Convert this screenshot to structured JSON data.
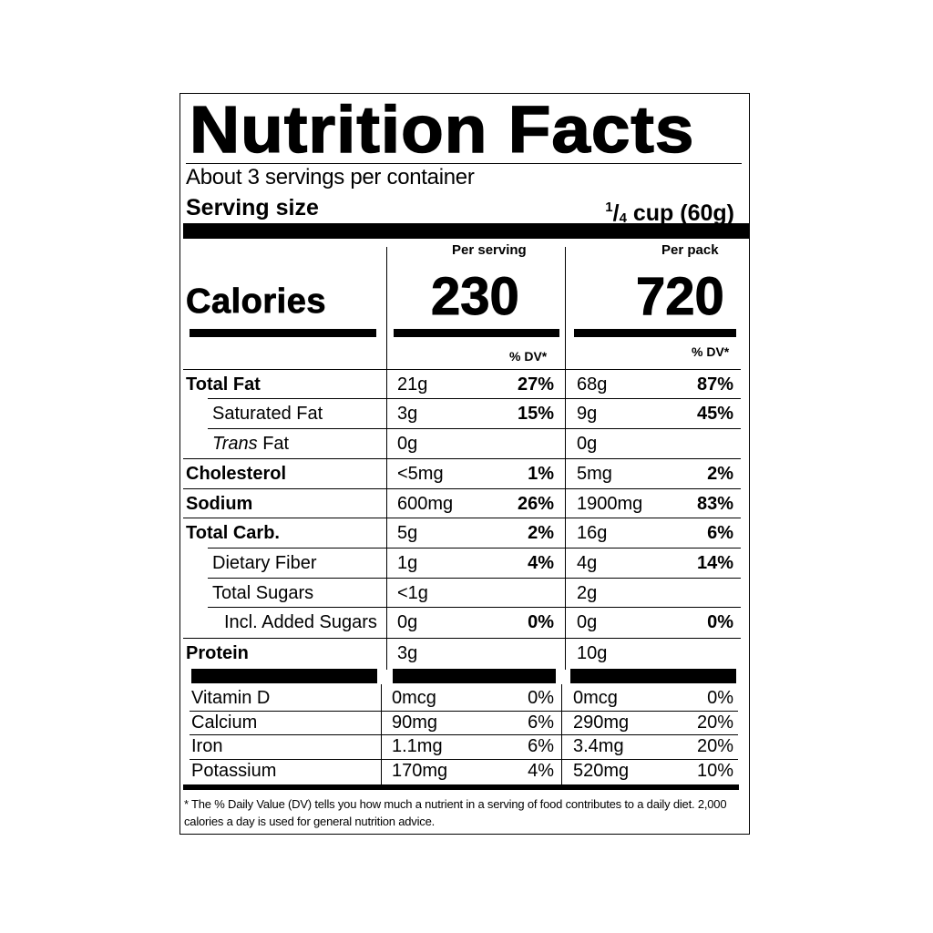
{
  "title": "Nutrition Facts",
  "servings_per_container": "About 3 servings per container",
  "serving_size": {
    "label": "Serving size",
    "numerator": "1",
    "slash": "/",
    "denominator": "4",
    "rest": " cup (60g)"
  },
  "columns": {
    "per_serving": "Per serving",
    "per_pack": "Per pack",
    "dv": "% DV*"
  },
  "calories": {
    "label": "Calories",
    "per_serving": "230",
    "per_pack": "720"
  },
  "nutrients": [
    {
      "name": "Total Fat",
      "bold": true,
      "indent": 0,
      "serving_amount": "21g",
      "serving_dv": "27%",
      "pack_amount": "68g",
      "pack_dv": "87%"
    },
    {
      "name": "Saturated Fat",
      "bold": false,
      "indent": 1,
      "serving_amount": "3g",
      "serving_dv": "15%",
      "pack_amount": "9g",
      "pack_dv": "45%"
    },
    {
      "name_italic": "Trans",
      "name": " Fat",
      "bold": false,
      "indent": 1,
      "serving_amount": "0g",
      "serving_dv": "",
      "pack_amount": "0g",
      "pack_dv": ""
    },
    {
      "name": "Cholesterol",
      "bold": true,
      "indent": 0,
      "serving_amount": "<5mg",
      "serving_dv": "1%",
      "pack_amount": "5mg",
      "pack_dv": "2%"
    },
    {
      "name": "Sodium",
      "bold": true,
      "indent": 0,
      "serving_amount": "600mg",
      "serving_dv": "26%",
      "pack_amount": "1900mg",
      "pack_dv": "83%"
    },
    {
      "name": "Total Carb.",
      "bold": true,
      "indent": 0,
      "serving_amount": "5g",
      "serving_dv": "2%",
      "pack_amount": "16g",
      "pack_dv": "6%"
    },
    {
      "name": "Dietary Fiber",
      "bold": false,
      "indent": 1,
      "serving_amount": "1g",
      "serving_dv": "4%",
      "pack_amount": "4g",
      "pack_dv": "14%"
    },
    {
      "name": "Total Sugars",
      "bold": false,
      "indent": 1,
      "serving_amount": "<1g",
      "serving_dv": "",
      "pack_amount": "2g",
      "pack_dv": ""
    },
    {
      "name": "Incl. Added Sugars",
      "bold": false,
      "indent": 2,
      "serving_amount": "0g",
      "serving_dv": "0%",
      "pack_amount": "0g",
      "pack_dv": "0%"
    },
    {
      "name": "Protein",
      "bold": true,
      "indent": 0,
      "serving_amount": "3g",
      "serving_dv": "",
      "pack_amount": "10g",
      "pack_dv": ""
    }
  ],
  "vitamins": [
    {
      "name": "Vitamin D",
      "serving_amount": "0mcg",
      "serving_dv": "0%",
      "pack_amount": "0mcg",
      "pack_dv": "0%"
    },
    {
      "name": "Calcium",
      "serving_amount": "90mg",
      "serving_dv": "6%",
      "pack_amount": "290mg",
      "pack_dv": "20%"
    },
    {
      "name": "Iron",
      "serving_amount": "1.1mg",
      "serving_dv": "6%",
      "pack_amount": "3.4mg",
      "pack_dv": "20%"
    },
    {
      "name": "Potassium",
      "serving_amount": "170mg",
      "serving_dv": "4%",
      "pack_amount": "520mg",
      "pack_dv": "10%"
    }
  ],
  "footnote": "* The % Daily Value (DV) tells you how much a nutrient in a serving of food contributes to a daily diet. 2,000 calories a day is used for general nutrition advice."
}
